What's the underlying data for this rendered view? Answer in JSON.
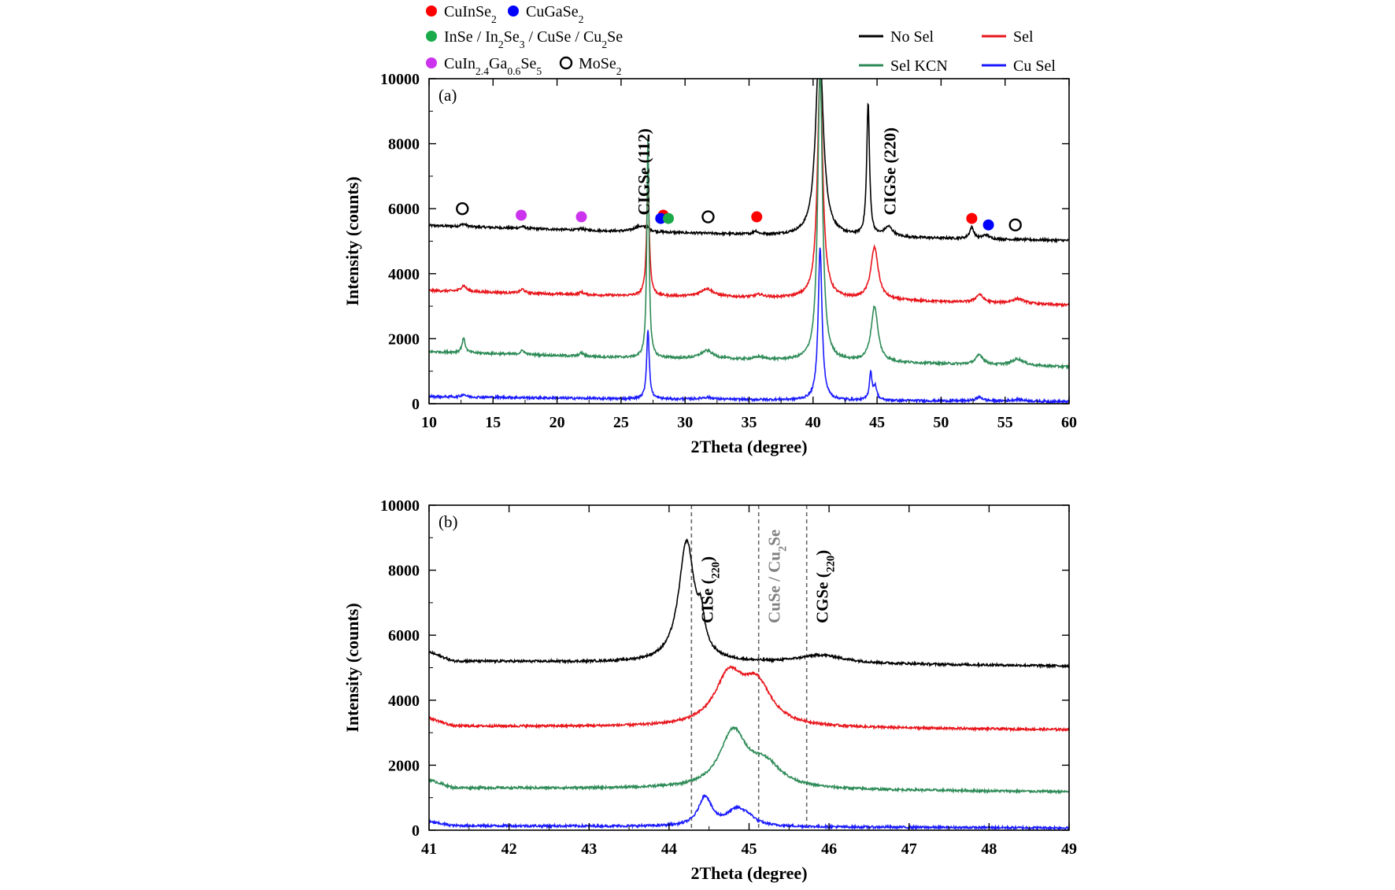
{
  "colors": {
    "no_sel": "#000000",
    "sel": "#e8151b",
    "sel_kcn": "#2e8b57",
    "cu_sel": "#1a1aff",
    "phase_cuinse2": "#ff0000",
    "phase_cugase2": "#0000ff",
    "phase_inse": "#1aaa4a",
    "phase_cuin24": "#cc33ee",
    "phase_mose2": "#000000",
    "ref_line": "#666666",
    "cuse_label": "#808080"
  },
  "legend": {
    "phases": [
      {
        "symbol": "filled-circle",
        "color": "#ff0000",
        "label": "CuInSe2"
      },
      {
        "symbol": "filled-circle",
        "color": "#0000ff",
        "label": "CuGaSe2"
      },
      {
        "symbol": "filled-circle",
        "color": "#1aaa4a",
        "label": "InSe / In2Se3 / CuSe / Cu2Se"
      },
      {
        "symbol": "filled-circle",
        "color": "#cc33ee",
        "label": "CuIn2.4Ga0.6Se5"
      },
      {
        "symbol": "open-circle",
        "color": "#000000",
        "label": "MoSe2"
      }
    ],
    "series": [
      {
        "label": "No Sel",
        "color": "#000000"
      },
      {
        "label": "Sel",
        "color": "#e8151b"
      },
      {
        "label": "Sel KCN",
        "color": "#2e8b57"
      },
      {
        "label": "Cu Sel",
        "color": "#1a1aff"
      }
    ]
  },
  "chart_data": [
    {
      "type": "line",
      "panel_label": "(a)",
      "xlabel": "2Theta (degree)",
      "ylabel": "Intensity (counts)",
      "xlim": [
        10,
        60
      ],
      "ylim": [
        0,
        10000
      ],
      "xticks": [
        10,
        15,
        20,
        25,
        30,
        35,
        40,
        45,
        50,
        55,
        60
      ],
      "yticks": [
        0,
        2000,
        4000,
        6000,
        8000,
        10000
      ],
      "grid": false,
      "legend_position": "top",
      "annotations": [
        {
          "text": "CIGSe (112)",
          "x": 26.8,
          "y": 5800,
          "rotation": -90
        },
        {
          "text": "CIGSe (220)",
          "x": 46.0,
          "y": 5800,
          "rotation": -90
        }
      ],
      "phase_markers": [
        {
          "x": 12.6,
          "y": 6000,
          "phase": "MoSe2"
        },
        {
          "x": 17.2,
          "y": 5800,
          "phase": "CuIn2.4Ga0.6Se5"
        },
        {
          "x": 21.9,
          "y": 5750,
          "phase": "CuIn2.4Ga0.6Se5"
        },
        {
          "x": 28.3,
          "y": 5800,
          "phase": "CuInSe2"
        },
        {
          "x": 28.1,
          "y": 5700,
          "phase": "CuGaSe2"
        },
        {
          "x": 28.7,
          "y": 5700,
          "phase": "InSe / In2Se3 / CuSe / Cu2Se"
        },
        {
          "x": 31.8,
          "y": 5750,
          "phase": "MoSe2"
        },
        {
          "x": 35.6,
          "y": 5750,
          "phase": "CuInSe2"
        },
        {
          "x": 52.4,
          "y": 5700,
          "phase": "CuInSe2"
        },
        {
          "x": 53.7,
          "y": 5500,
          "phase": "CuGaSe2"
        },
        {
          "x": 55.8,
          "y": 5500,
          "phase": "MoSe2"
        }
      ],
      "series": [
        {
          "name": "No Sel",
          "baseline": [
            [
              10,
              5480
            ],
            [
              25,
              5300
            ],
            [
              40,
              5150
            ],
            [
              60,
              5020
            ]
          ],
          "peaks": [
            [
              12.7,
              80,
              0.25
            ],
            [
              17.3,
              60,
              0.2
            ],
            [
              21.9,
              50,
              0.2
            ],
            [
              26.4,
              150,
              0.5
            ],
            [
              27.0,
              100,
              0.3
            ],
            [
              35.5,
              100,
              0.2
            ],
            [
              40.5,
              6000,
              0.35
            ],
            [
              44.3,
              4100,
              0.13
            ],
            [
              45.9,
              300,
              0.4
            ],
            [
              52.4,
              350,
              0.2
            ],
            [
              53.5,
              120,
              0.3
            ]
          ]
        },
        {
          "name": "Sel",
          "baseline": [
            [
              10,
              3480
            ],
            [
              25,
              3320
            ],
            [
              40,
              3240
            ],
            [
              60,
              3030
            ]
          ],
          "peaks": [
            [
              12.7,
              180,
              0.25
            ],
            [
              17.3,
              120,
              0.2
            ],
            [
              21.9,
              80,
              0.2
            ],
            [
              27.1,
              3400,
              0.13
            ],
            [
              31.7,
              250,
              0.6
            ],
            [
              35.8,
              80,
              0.4
            ],
            [
              40.55,
              6900,
              0.25
            ],
            [
              44.8,
              1600,
              0.35
            ],
            [
              53.0,
              250,
              0.35
            ],
            [
              56.0,
              150,
              0.6
            ]
          ]
        },
        {
          "name": "Sel KCN",
          "baseline": [
            [
              10,
              1600
            ],
            [
              25,
              1420
            ],
            [
              40,
              1320
            ],
            [
              60,
              1130
            ]
          ],
          "peaks": [
            [
              12.7,
              450,
              0.15
            ],
            [
              17.3,
              120,
              0.2
            ],
            [
              21.9,
              100,
              0.2
            ],
            [
              27.1,
              6800,
              0.1
            ],
            [
              31.7,
              250,
              0.6
            ],
            [
              35.8,
              80,
              0.4
            ],
            [
              40.55,
              9000,
              0.22
            ],
            [
              44.8,
              1700,
              0.32
            ],
            [
              53.0,
              300,
              0.35
            ],
            [
              56.0,
              200,
              0.6
            ]
          ]
        },
        {
          "name": "Cu Sel",
          "baseline": [
            [
              10,
              220
            ],
            [
              25,
              150
            ],
            [
              40,
              110
            ],
            [
              60,
              60
            ]
          ],
          "peaks": [
            [
              12.7,
              80,
              0.2
            ],
            [
              27.1,
              2150,
              0.12
            ],
            [
              31.7,
              60,
              0.6
            ],
            [
              40.55,
              4700,
              0.18
            ],
            [
              44.5,
              850,
              0.12
            ],
            [
              44.85,
              420,
              0.15
            ],
            [
              53.0,
              120,
              0.35
            ],
            [
              56.0,
              60,
              0.6
            ]
          ]
        }
      ]
    },
    {
      "type": "line",
      "panel_label": "(b)",
      "xlabel": "2Theta (degree)",
      "ylabel": "Intensity (counts)",
      "xlim": [
        41,
        49
      ],
      "ylim": [
        0,
        10000
      ],
      "xticks": [
        41,
        42,
        43,
        44,
        45,
        46,
        47,
        48,
        49
      ],
      "yticks": [
        0,
        2000,
        4000,
        6000,
        8000,
        10000
      ],
      "grid": false,
      "reference_lines": [
        {
          "x": 44.28,
          "label": "CISe (220)",
          "label_color": "#000000"
        },
        {
          "x": 45.12,
          "label": "CuSe / Cu2Se",
          "label_color": "#808080"
        },
        {
          "x": 45.72,
          "label": "CGSe (220)",
          "label_color": "#000000"
        }
      ],
      "series": [
        {
          "name": "No Sel",
          "baseline": [
            [
              41,
              5480
            ],
            [
              41.3,
              5200
            ],
            [
              44,
              5150
            ],
            [
              46,
              5120
            ],
            [
              49,
              5050
            ]
          ],
          "peaks": [
            [
              44.22,
              3700,
              0.12
            ],
            [
              44.4,
              900,
              0.05
            ],
            [
              45.9,
              250,
              0.35
            ]
          ]
        },
        {
          "name": "Sel",
          "baseline": [
            [
              41,
              3450
            ],
            [
              41.3,
              3200
            ],
            [
              44,
              3170
            ],
            [
              49,
              3090
            ]
          ],
          "peaks": [
            [
              44.75,
              1500,
              0.22
            ],
            [
              45.1,
              1200,
              0.22
            ]
          ]
        },
        {
          "name": "Sel KCN",
          "baseline": [
            [
              41,
              1550
            ],
            [
              41.3,
              1300
            ],
            [
              44,
              1270
            ],
            [
              49,
              1180
            ]
          ],
          "peaks": [
            [
              44.8,
              1700,
              0.2
            ],
            [
              45.2,
              700,
              0.25
            ]
          ]
        },
        {
          "name": "Cu Sel",
          "baseline": [
            [
              41,
              260
            ],
            [
              41.3,
              140
            ],
            [
              44,
              110
            ],
            [
              49,
              70
            ]
          ],
          "peaks": [
            [
              44.45,
              900,
              0.1
            ],
            [
              44.85,
              500,
              0.15
            ],
            [
              45.0,
              150,
              0.1
            ]
          ]
        }
      ]
    }
  ]
}
